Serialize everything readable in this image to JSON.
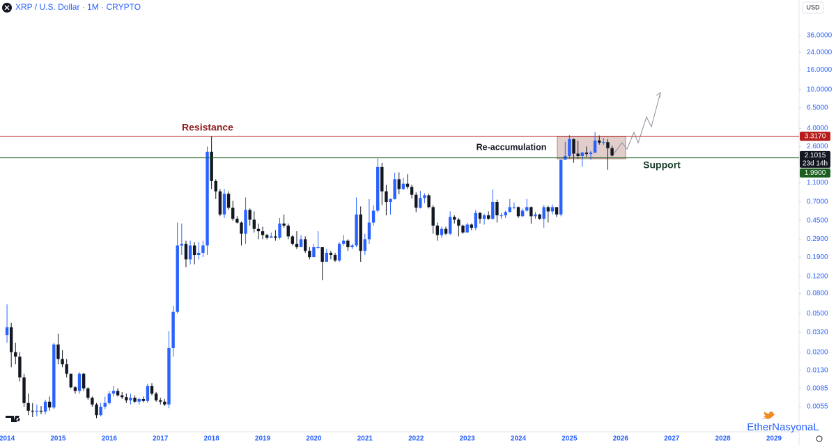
{
  "chart_data": {
    "type": "candlestick",
    "title": "XRP / U.S. Dollar · 1M · CRYPTO",
    "currency": "USD",
    "log_scale": true,
    "grid": false,
    "up_color": "#2962ff",
    "down_color": "#131722",
    "ylim": [
      0.00304,
      83.4
    ],
    "yticks": [
      {
        "value": 36,
        "label": "36.0000"
      },
      {
        "value": 24,
        "label": "24.0000"
      },
      {
        "value": 16,
        "label": "16.0000"
      },
      {
        "value": 10,
        "label": "10.0000"
      },
      {
        "value": 6.5,
        "label": "6.5000"
      },
      {
        "value": 4,
        "label": "4.0000"
      },
      {
        "value": 2.6,
        "label": "2.6000"
      },
      {
        "value": 1.1,
        "label": "1.1000"
      },
      {
        "value": 0.7,
        "label": "0.7000"
      },
      {
        "value": 0.45,
        "label": "0.4500"
      },
      {
        "value": 0.29,
        "label": "0.2900"
      },
      {
        "value": 0.19,
        "label": "0.1900"
      },
      {
        "value": 0.12,
        "label": "0.1200"
      },
      {
        "value": 0.08,
        "label": "0.0800"
      },
      {
        "value": 0.05,
        "label": "0.0500"
      },
      {
        "value": 0.032,
        "label": "0.0320"
      },
      {
        "value": 0.02,
        "label": "0.0200"
      },
      {
        "value": 0.013,
        "label": "0.0130"
      },
      {
        "value": 0.0085,
        "label": "0.0085"
      },
      {
        "value": 0.0055,
        "label": "0.0055"
      }
    ],
    "price_labels": [
      {
        "value": 3.317,
        "label": "3.3170",
        "color": "#b71c1c"
      },
      {
        "value": 2.1015,
        "label": "2.1015",
        "countdown": "23d 14h",
        "color": "#131722"
      },
      {
        "value": 1.99,
        "label": "1.9900",
        "color": "#1b5e20"
      }
    ],
    "annotations": {
      "resistance": "Resistance",
      "reaccumulation": "Re-accumulation",
      "support": "Support"
    },
    "categories": [
      "2014",
      null,
      null,
      null,
      null,
      null,
      null,
      null,
      null,
      null,
      null,
      null,
      "2015",
      null,
      null,
      null,
      null,
      null,
      null,
      null,
      null,
      null,
      null,
      null,
      "2016",
      null,
      null,
      null,
      null,
      null,
      null,
      null,
      null,
      null,
      null,
      null,
      "2017",
      null,
      null,
      null,
      null,
      null,
      null,
      null,
      null,
      null,
      null,
      null,
      "2018",
      null,
      null,
      null,
      null,
      null,
      null,
      null,
      null,
      null,
      null,
      null,
      "2019",
      null,
      null,
      null,
      null,
      null,
      null,
      null,
      null,
      null,
      null,
      null,
      "2020",
      null,
      null,
      null,
      null,
      null,
      null,
      null,
      null,
      null,
      null,
      null,
      "2021",
      null,
      null,
      null,
      null,
      null,
      null,
      null,
      null,
      null,
      null,
      null,
      "2022",
      null,
      null,
      null,
      null,
      null,
      null,
      null,
      null,
      null,
      null,
      null,
      "2023",
      null,
      null,
      null,
      null,
      null,
      null,
      null,
      null,
      null,
      null,
      null,
      "2024",
      null,
      null,
      null,
      null,
      null,
      null,
      null,
      null,
      null,
      null,
      null,
      "2025",
      null,
      null,
      null,
      null,
      null,
      null,
      null,
      null,
      null,
      null,
      null,
      "2026",
      null,
      null,
      null,
      null,
      null,
      null,
      null,
      null,
      null,
      null,
      null,
      "2027",
      null,
      null,
      null,
      null,
      null,
      null,
      null,
      null,
      null,
      null,
      null,
      "2028",
      null,
      null,
      null,
      null,
      null,
      null,
      null,
      null,
      null,
      null,
      null,
      "2029",
      null,
      null
    ],
    "ohlc": [
      [
        0.03,
        0.062,
        0.025,
        0.036
      ],
      [
        0.036,
        0.04,
        0.014,
        0.02
      ],
      [
        0.02,
        0.025,
        0.015,
        0.018
      ],
      [
        0.018,
        0.02,
        0.01,
        0.011
      ],
      [
        0.011,
        0.012,
        0.0055,
        0.006
      ],
      [
        0.006,
        0.0075,
        0.0045,
        0.005
      ],
      [
        0.005,
        0.006,
        0.0043,
        0.0049
      ],
      [
        0.0049,
        0.0058,
        0.0044,
        0.005
      ],
      [
        0.005,
        0.0056,
        0.0046,
        0.0049
      ],
      [
        0.0049,
        0.0065,
        0.0046,
        0.0062
      ],
      [
        0.0062,
        0.007,
        0.005,
        0.0054
      ],
      [
        0.0054,
        0.025,
        0.0052,
        0.024
      ],
      [
        0.024,
        0.031,
        0.015,
        0.017
      ],
      [
        0.017,
        0.021,
        0.014,
        0.015
      ],
      [
        0.015,
        0.017,
        0.011,
        0.012
      ],
      [
        0.012,
        0.012,
        0.0085,
        0.0087
      ],
      [
        0.0087,
        0.009,
        0.0075,
        0.008
      ],
      [
        0.008,
        0.0125,
        0.0075,
        0.012
      ],
      [
        0.012,
        0.0122,
        0.008,
        0.0085
      ],
      [
        0.0085,
        0.0087,
        0.0065,
        0.0068
      ],
      [
        0.0068,
        0.007,
        0.0055,
        0.0058
      ],
      [
        0.0058,
        0.006,
        0.0042,
        0.0045
      ],
      [
        0.0045,
        0.006,
        0.0044,
        0.0055
      ],
      [
        0.0055,
        0.007,
        0.0052,
        0.006
      ],
      [
        0.006,
        0.008,
        0.0058,
        0.0075
      ],
      [
        0.0075,
        0.009,
        0.007,
        0.008
      ],
      [
        0.008,
        0.0085,
        0.007,
        0.0072
      ],
      [
        0.0072,
        0.0078,
        0.0066,
        0.0069
      ],
      [
        0.0069,
        0.0075,
        0.006,
        0.0064
      ],
      [
        0.0064,
        0.0075,
        0.0058,
        0.0068
      ],
      [
        0.0068,
        0.0072,
        0.006,
        0.0062
      ],
      [
        0.0062,
        0.0068,
        0.0058,
        0.0066
      ],
      [
        0.0066,
        0.007,
        0.0061,
        0.0063
      ],
      [
        0.0063,
        0.0095,
        0.006,
        0.009
      ],
      [
        0.009,
        0.0096,
        0.0072,
        0.0075
      ],
      [
        0.0075,
        0.0078,
        0.0062,
        0.0064
      ],
      [
        0.0064,
        0.0068,
        0.0058,
        0.0062
      ],
      [
        0.0062,
        0.0066,
        0.0056,
        0.0058
      ],
      [
        0.0058,
        0.033,
        0.0053,
        0.022
      ],
      [
        0.022,
        0.06,
        0.018,
        0.052
      ],
      [
        0.052,
        0.43,
        0.05,
        0.25
      ],
      [
        0.25,
        0.42,
        0.2,
        0.26
      ],
      [
        0.26,
        0.28,
        0.15,
        0.18
      ],
      [
        0.18,
        0.28,
        0.16,
        0.25
      ],
      [
        0.25,
        0.27,
        0.16,
        0.2
      ],
      [
        0.2,
        0.27,
        0.18,
        0.21
      ],
      [
        0.21,
        0.28,
        0.19,
        0.25
      ],
      [
        0.25,
        2.6,
        0.2,
        2.3
      ],
      [
        2.3,
        3.317,
        0.95,
        1.15
      ],
      [
        1.15,
        1.2,
        0.75,
        0.9
      ],
      [
        0.9,
        0.95,
        0.5,
        0.52
      ],
      [
        0.52,
        0.95,
        0.48,
        0.85
      ],
      [
        0.85,
        0.9,
        0.58,
        0.61
      ],
      [
        0.61,
        0.72,
        0.45,
        0.47
      ],
      [
        0.47,
        0.5,
        0.42,
        0.43
      ],
      [
        0.43,
        0.44,
        0.25,
        0.33
      ],
      [
        0.33,
        0.78,
        0.26,
        0.58
      ],
      [
        0.58,
        0.6,
        0.4,
        0.46
      ],
      [
        0.46,
        0.56,
        0.34,
        0.37
      ],
      [
        0.37,
        0.42,
        0.29,
        0.35
      ],
      [
        0.35,
        0.39,
        0.29,
        0.32
      ],
      [
        0.32,
        0.33,
        0.29,
        0.3
      ],
      [
        0.3,
        0.34,
        0.3,
        0.31
      ],
      [
        0.31,
        0.36,
        0.28,
        0.3
      ],
      [
        0.3,
        0.48,
        0.29,
        0.42
      ],
      [
        0.42,
        0.52,
        0.38,
        0.4
      ],
      [
        0.4,
        0.42,
        0.29,
        0.31
      ],
      [
        0.31,
        0.32,
        0.25,
        0.26
      ],
      [
        0.26,
        0.35,
        0.23,
        0.24
      ],
      [
        0.24,
        0.32,
        0.24,
        0.29
      ],
      [
        0.29,
        0.31,
        0.21,
        0.22
      ],
      [
        0.22,
        0.24,
        0.18,
        0.19
      ],
      [
        0.19,
        0.26,
        0.19,
        0.24
      ],
      [
        0.24,
        0.35,
        0.23,
        0.24
      ],
      [
        0.24,
        0.24,
        0.11,
        0.17
      ],
      [
        0.17,
        0.23,
        0.17,
        0.21
      ],
      [
        0.21,
        0.22,
        0.18,
        0.2
      ],
      [
        0.2,
        0.21,
        0.17,
        0.175
      ],
      [
        0.175,
        0.27,
        0.17,
        0.26
      ],
      [
        0.26,
        0.32,
        0.25,
        0.28
      ],
      [
        0.28,
        0.29,
        0.22,
        0.24
      ],
      [
        0.24,
        0.26,
        0.23,
        0.25
      ],
      [
        0.25,
        0.78,
        0.24,
        0.52
      ],
      [
        0.52,
        0.63,
        0.17,
        0.22
      ],
      [
        0.22,
        0.33,
        0.2,
        0.29
      ],
      [
        0.29,
        0.75,
        0.26,
        0.43
      ],
      [
        0.43,
        0.65,
        0.4,
        0.57
      ],
      [
        0.57,
        1.96,
        0.55,
        1.6
      ],
      [
        1.6,
        1.77,
        0.65,
        0.9
      ],
      [
        0.9,
        1.05,
        0.51,
        0.7
      ],
      [
        0.7,
        0.76,
        0.52,
        0.75
      ],
      [
        0.75,
        1.4,
        0.74,
        1.2
      ],
      [
        1.2,
        1.41,
        0.84,
        0.95
      ],
      [
        0.95,
        1.24,
        0.93,
        1.08
      ],
      [
        1.08,
        1.35,
        0.95,
        1.0
      ],
      [
        1.0,
        1.05,
        0.76,
        0.83
      ],
      [
        0.83,
        0.88,
        0.55,
        0.61
      ],
      [
        0.61,
        0.91,
        0.6,
        0.77
      ],
      [
        0.77,
        0.86,
        0.68,
        0.82
      ],
      [
        0.82,
        0.85,
        0.6,
        0.62
      ],
      [
        0.62,
        0.65,
        0.33,
        0.4
      ],
      [
        0.4,
        0.43,
        0.28,
        0.32
      ],
      [
        0.32,
        0.39,
        0.3,
        0.37
      ],
      [
        0.37,
        0.39,
        0.32,
        0.33
      ],
      [
        0.33,
        0.56,
        0.32,
        0.49
      ],
      [
        0.49,
        0.51,
        0.42,
        0.46
      ],
      [
        0.46,
        0.48,
        0.31,
        0.4
      ],
      [
        0.4,
        0.41,
        0.33,
        0.34
      ],
      [
        0.34,
        0.43,
        0.34,
        0.41
      ],
      [
        0.41,
        0.42,
        0.36,
        0.38
      ],
      [
        0.38,
        0.58,
        0.36,
        0.54
      ],
      [
        0.54,
        0.55,
        0.42,
        0.47
      ],
      [
        0.47,
        0.53,
        0.41,
        0.51
      ],
      [
        0.51,
        0.56,
        0.46,
        0.47
      ],
      [
        0.47,
        0.94,
        0.46,
        0.7
      ],
      [
        0.7,
        0.74,
        0.43,
        0.51
      ],
      [
        0.51,
        0.54,
        0.47,
        0.51
      ],
      [
        0.51,
        0.57,
        0.48,
        0.55
      ],
      [
        0.55,
        0.75,
        0.55,
        0.62
      ],
      [
        0.62,
        0.69,
        0.59,
        0.62
      ],
      [
        0.62,
        0.63,
        0.48,
        0.5
      ],
      [
        0.5,
        0.6,
        0.49,
        0.57
      ],
      [
        0.57,
        0.75,
        0.56,
        0.62
      ],
      [
        0.62,
        0.63,
        0.42,
        0.5
      ],
      [
        0.5,
        0.55,
        0.47,
        0.52
      ],
      [
        0.52,
        0.53,
        0.46,
        0.47
      ],
      [
        0.47,
        0.65,
        0.38,
        0.62
      ],
      [
        0.62,
        0.64,
        0.43,
        0.56
      ],
      [
        0.56,
        0.66,
        0.52,
        0.62
      ],
      [
        0.62,
        0.62,
        0.49,
        0.52
      ],
      [
        0.52,
        1.9,
        0.5,
        1.9
      ],
      [
        1.9,
        2.9,
        1.9,
        2.08
      ],
      [
        2.08,
        3.4,
        1.95,
        3.1
      ],
      [
        3.1,
        3.15,
        1.77,
        2.2
      ],
      [
        2.2,
        2.98,
        1.95,
        2.08
      ],
      [
        2.08,
        2.3,
        1.61,
        2.25
      ],
      [
        2.25,
        2.6,
        2.05,
        2.18
      ],
      [
        2.18,
        2.35,
        1.9,
        2.25
      ],
      [
        2.25,
        3.65,
        2.22,
        3.0
      ],
      [
        3.0,
        3.38,
        2.72,
        2.85
      ],
      [
        2.85,
        3.18,
        2.7,
        2.88
      ],
      [
        2.88,
        3.1,
        1.5,
        2.5
      ],
      [
        2.5,
        2.65,
        2.05,
        2.1
      ],
      null,
      null,
      null,
      null,
      null,
      null,
      null,
      null,
      null,
      null,
      null,
      null,
      null,
      null,
      null,
      null,
      null,
      null,
      null,
      null,
      null,
      null,
      null,
      null,
      null,
      null,
      null,
      null,
      null,
      null,
      null,
      null,
      null,
      null,
      null,
      null,
      null,
      null,
      null,
      null
    ],
    "watermark": "EtherNasyonaL"
  }
}
